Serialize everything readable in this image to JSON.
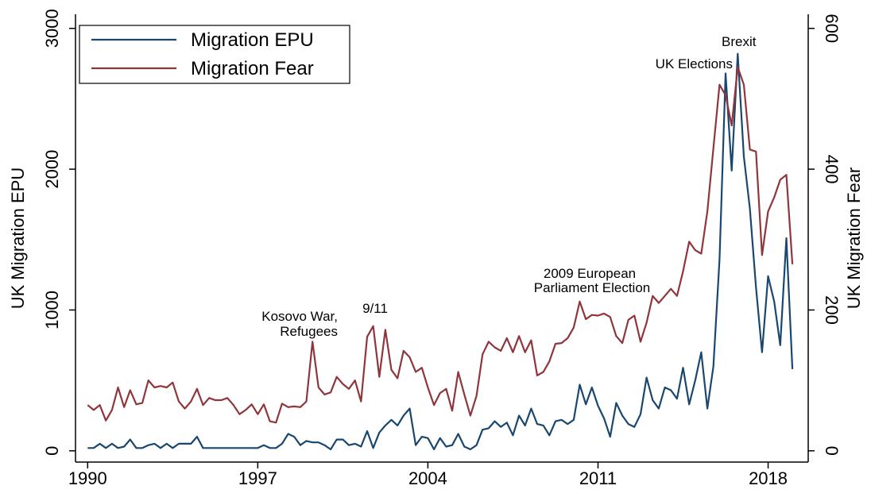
{
  "chart_data": {
    "type": "line",
    "ylabel": "UK Migration EPU",
    "y2label": "UK Migration Fear",
    "x": [
      1990,
      1990.25,
      1990.5,
      1990.75,
      1991,
      1991.25,
      1991.5,
      1991.75,
      1992,
      1992.25,
      1992.5,
      1992.75,
      1993,
      1993.25,
      1993.5,
      1993.75,
      1994,
      1994.25,
      1994.5,
      1994.75,
      1995,
      1995.25,
      1995.5,
      1995.75,
      1996,
      1996.25,
      1996.5,
      1996.75,
      1997,
      1997.25,
      1997.5,
      1997.75,
      1998,
      1998.25,
      1998.5,
      1998.75,
      1999,
      1999.25,
      1999.5,
      1999.75,
      2000,
      2000.25,
      2000.5,
      2000.75,
      2001,
      2001.25,
      2001.5,
      2001.75,
      2002,
      2002.25,
      2002.5,
      2002.75,
      2003,
      2003.25,
      2003.5,
      2003.75,
      2004,
      2004.25,
      2004.5,
      2004.75,
      2005,
      2005.25,
      2005.5,
      2005.75,
      2006,
      2006.25,
      2006.5,
      2006.75,
      2007,
      2007.25,
      2007.5,
      2007.75,
      2008,
      2008.25,
      2008.5,
      2008.75,
      2009,
      2009.25,
      2009.5,
      2009.75,
      2010,
      2010.25,
      2010.5,
      2010.75,
      2011,
      2011.25,
      2011.5,
      2011.75,
      2012,
      2012.25,
      2012.5,
      2012.75,
      2013,
      2013.25,
      2013.5,
      2013.75,
      2014,
      2014.25,
      2014.5,
      2014.75,
      2015,
      2015.25,
      2015.5,
      2015.75,
      2016,
      2016.25,
      2016.5,
      2016.75,
      2017,
      2017.25,
      2017.5,
      2017.75,
      2018,
      2018.25,
      2018.5,
      2018.75,
      2019
    ],
    "series": [
      {
        "name": "Migration EPU",
        "color": "#1a476f",
        "axis": "y",
        "values": [
          20,
          20,
          50,
          20,
          50,
          20,
          30,
          80,
          20,
          20,
          40,
          50,
          20,
          50,
          20,
          50,
          50,
          50,
          100,
          20,
          20,
          20,
          20,
          20,
          20,
          20,
          20,
          20,
          20,
          40,
          20,
          20,
          50,
          120,
          100,
          40,
          70,
          60,
          60,
          40,
          10,
          80,
          80,
          40,
          50,
          30,
          140,
          20,
          130,
          180,
          220,
          180,
          250,
          300,
          40,
          100,
          90,
          10,
          90,
          30,
          40,
          120,
          30,
          10,
          40,
          150,
          160,
          210,
          170,
          200,
          110,
          250,
          180,
          300,
          190,
          180,
          110,
          210,
          220,
          190,
          220,
          470,
          330,
          450,
          320,
          230,
          100,
          340,
          250,
          190,
          170,
          260,
          520,
          360,
          300,
          450,
          430,
          370,
          590,
          330,
          500,
          700,
          300,
          600,
          1360,
          2680,
          1990,
          2820,
          2090,
          1720,
          1160,
          700,
          1240,
          1060,
          750,
          1510,
          580
        ]
      },
      {
        "name": "Migration Fear",
        "color": "#90353b",
        "axis": "y2",
        "values": [
          65,
          58,
          65,
          43,
          58,
          90,
          62,
          86,
          66,
          68,
          100,
          90,
          92,
          90,
          97,
          70,
          60,
          70,
          88,
          65,
          75,
          72,
          72,
          75,
          65,
          52,
          58,
          66,
          52,
          66,
          42,
          40,
          67,
          62,
          63,
          62,
          70,
          155,
          90,
          80,
          83,
          105,
          95,
          88,
          100,
          70,
          162,
          177,
          105,
          172,
          115,
          103,
          142,
          133,
          112,
          118,
          90,
          65,
          82,
          88,
          57,
          112,
          80,
          50,
          78,
          137,
          155,
          147,
          142,
          160,
          140,
          163,
          140,
          157,
          107,
          112,
          127,
          152,
          153,
          160,
          175,
          212,
          187,
          193,
          192,
          195,
          190,
          163,
          153,
          186,
          192,
          155,
          182,
          220,
          210,
          220,
          230,
          220,
          255,
          297,
          285,
          280,
          340,
          430,
          520,
          505,
          462,
          545,
          520,
          428,
          425,
          278,
          340,
          360,
          385,
          392,
          265
        ]
      }
    ],
    "xlim": [
      1989.5,
      2019.65
    ],
    "xticks": [
      1990,
      1997,
      2004,
      2011,
      2018
    ],
    "ylim": [
      -80,
      3100
    ],
    "yticks": [
      0,
      1000,
      2000,
      3000
    ],
    "y2lim": [
      -16,
      620
    ],
    "y2ticks": [
      0,
      200,
      400,
      600
    ],
    "annotations": [
      "Kosovo War,",
      "Refugees",
      "9/11",
      "2009 European",
      "Parliament Election",
      "UK Elections",
      "Brexit"
    ],
    "legend": "top-left"
  }
}
